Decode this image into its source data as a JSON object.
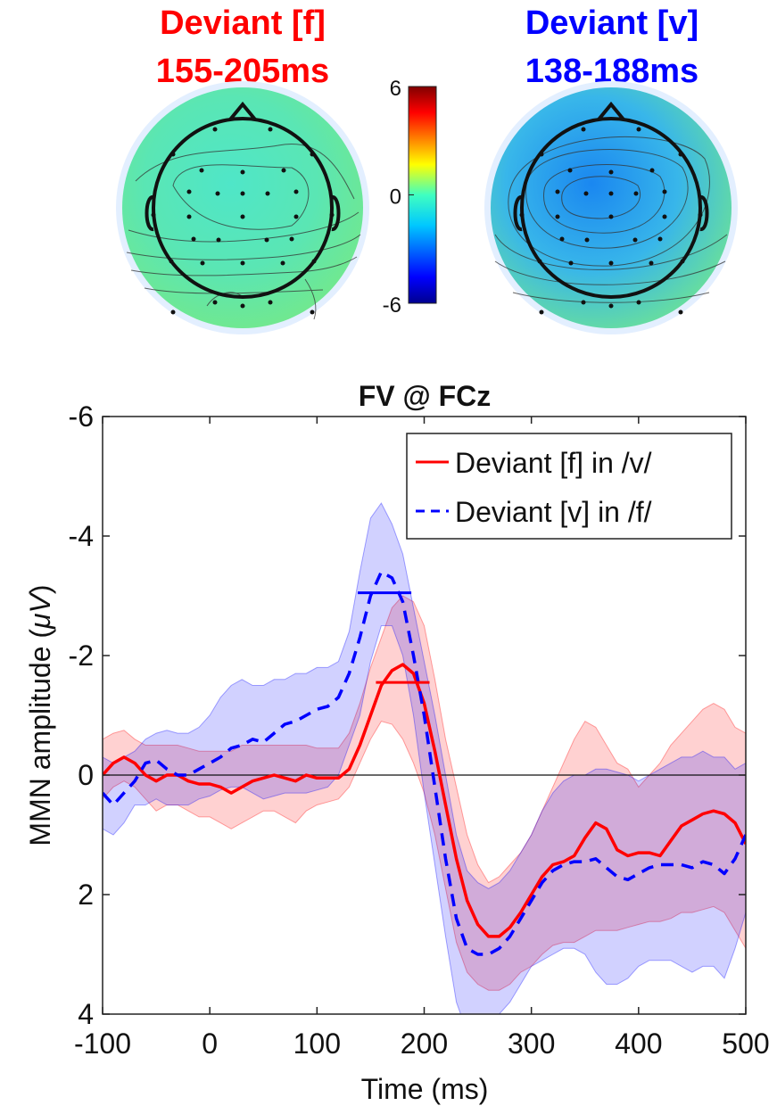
{
  "topomaps": [
    {
      "title": "Deviant [f]",
      "window": "155-205ms",
      "color": "#ff0000",
      "fill_inner": "#4fe6c8",
      "fill_mid": "#5ae6b4",
      "fill_outer": "#74e88a"
    },
    {
      "title": "Deviant [v]",
      "window": "138-188ms",
      "color": "#0000ff",
      "fill_inner": "#1a87f0",
      "fill_mid": "#38b6ea",
      "fill_outer": "#6ae09a"
    }
  ],
  "colorbar": {
    "ticks": [
      {
        "label": "6",
        "value": 6
      },
      {
        "label": "0",
        "value": 0
      },
      {
        "label": "-6",
        "value": -6
      }
    ],
    "min": -6,
    "max": 6
  },
  "chart_data": {
    "type": "line",
    "title": "FV @ FCz",
    "xlabel": "Time (ms)",
    "ylabel_prefix": "MMN amplitude (",
    "ylabel_unit": "μV",
    "ylabel_suffix": ")",
    "xlim": [
      -100,
      500
    ],
    "ylim": [
      -6,
      4
    ],
    "y_reversed": true,
    "xticks": [
      -100,
      0,
      100,
      200,
      300,
      400,
      500
    ],
    "xtick_labels": [
      "-100",
      "0",
      "100",
      "200",
      "300",
      "400",
      "500"
    ],
    "yticks": [
      -6,
      -4,
      -2,
      0,
      2,
      4
    ],
    "ytick_labels": [
      "-6",
      "-4",
      "-2",
      "0",
      "2",
      "4"
    ],
    "legend_position": "top-right",
    "series": [
      {
        "name": "Deviant [f] in /v/",
        "color": "#ff0000",
        "style": "solid",
        "x": [
          -100,
          -90,
          -80,
          -70,
          -60,
          -50,
          -40,
          -30,
          -20,
          -10,
          0,
          10,
          20,
          30,
          40,
          50,
          60,
          70,
          80,
          90,
          100,
          110,
          120,
          130,
          140,
          150,
          160,
          170,
          180,
          190,
          200,
          210,
          220,
          230,
          240,
          250,
          260,
          270,
          280,
          290,
          300,
          310,
          320,
          330,
          340,
          350,
          360,
          370,
          380,
          390,
          400,
          410,
          420,
          430,
          440,
          450,
          460,
          470,
          480,
          490,
          500
        ],
        "y": [
          0,
          -0.2,
          -0.3,
          -0.2,
          0,
          0.1,
          0,
          0,
          0.1,
          0.15,
          0.15,
          0.2,
          0.3,
          0.2,
          0.1,
          0.05,
          0,
          0.05,
          0.1,
          0,
          0.05,
          0.05,
          0.05,
          -0.1,
          -0.5,
          -1.0,
          -1.5,
          -1.75,
          -1.85,
          -1.7,
          -1.2,
          -0.4,
          0.5,
          1.4,
          2.1,
          2.5,
          2.7,
          2.7,
          2.55,
          2.3,
          2.0,
          1.7,
          1.5,
          1.45,
          1.35,
          1.05,
          0.8,
          0.9,
          1.25,
          1.35,
          1.3,
          1.3,
          1.35,
          1.1,
          0.85,
          0.75,
          0.65,
          0.6,
          0.65,
          0.8,
          1.15
        ],
        "band_lower": [
          0.4,
          0.2,
          0.1,
          0.2,
          0.4,
          0.6,
          0.5,
          0.5,
          0.6,
          0.7,
          0.7,
          0.8,
          0.9,
          0.8,
          0.7,
          0.6,
          0.6,
          0.7,
          0.8,
          0.6,
          0.5,
          0.45,
          0.4,
          0.2,
          -0.2,
          -0.6,
          -0.9,
          -0.85,
          -0.6,
          -0.2,
          0.3,
          1.0,
          1.9,
          2.8,
          3.3,
          3.5,
          3.6,
          3.6,
          3.5,
          3.3,
          3.2,
          3.0,
          2.85,
          2.8,
          2.8,
          2.7,
          2.6,
          2.6,
          2.6,
          2.55,
          2.5,
          2.45,
          2.45,
          2.4,
          2.3,
          2.3,
          2.25,
          2.2,
          2.3,
          2.6,
          2.9
        ],
        "band_upper": [
          -0.6,
          -0.7,
          -0.75,
          -0.6,
          -0.5,
          -0.5,
          -0.5,
          -0.5,
          -0.45,
          -0.4,
          -0.4,
          -0.4,
          -0.4,
          -0.5,
          -0.5,
          -0.5,
          -0.5,
          -0.5,
          -0.5,
          -0.5,
          -0.45,
          -0.45,
          -0.45,
          -0.7,
          -1.2,
          -1.8,
          -2.3,
          -2.8,
          -3.0,
          -2.9,
          -2.5,
          -1.6,
          -0.6,
          0.2,
          1.0,
          1.5,
          1.8,
          1.7,
          1.5,
          1.3,
          1.0,
          0.6,
          0.2,
          -0.2,
          -0.6,
          -0.9,
          -0.8,
          -0.5,
          -0.2,
          -0.1,
          0.2,
          0.0,
          -0.2,
          -0.5,
          -0.7,
          -0.9,
          -1.1,
          -1.2,
          -1.1,
          -0.8,
          -0.7
        ]
      },
      {
        "name": "Deviant [v] in /f/",
        "color": "#0000ff",
        "style": "dashed",
        "x": [
          -100,
          -90,
          -80,
          -70,
          -60,
          -50,
          -40,
          -30,
          -20,
          -10,
          0,
          10,
          20,
          30,
          40,
          50,
          60,
          70,
          80,
          90,
          100,
          110,
          120,
          130,
          140,
          150,
          160,
          170,
          180,
          190,
          200,
          210,
          220,
          230,
          240,
          250,
          260,
          270,
          280,
          290,
          300,
          310,
          320,
          330,
          340,
          350,
          360,
          370,
          380,
          390,
          400,
          410,
          420,
          430,
          440,
          450,
          460,
          470,
          480,
          490,
          500
        ],
        "y": [
          0.3,
          0.5,
          0.3,
          0.1,
          -0.2,
          -0.25,
          -0.1,
          0,
          0,
          -0.1,
          -0.2,
          -0.3,
          -0.45,
          -0.5,
          -0.6,
          -0.55,
          -0.7,
          -0.85,
          -0.9,
          -1.0,
          -1.1,
          -1.15,
          -1.3,
          -1.7,
          -2.3,
          -3.0,
          -3.4,
          -3.3,
          -2.9,
          -2.0,
          -1.0,
          0.2,
          1.4,
          2.4,
          2.9,
          3.0,
          3.0,
          2.9,
          2.7,
          2.4,
          2.1,
          1.8,
          1.6,
          1.5,
          1.45,
          1.45,
          1.4,
          1.55,
          1.7,
          1.75,
          1.65,
          1.55,
          1.5,
          1.5,
          1.5,
          1.55,
          1.45,
          1.5,
          1.65,
          1.4,
          1.0
        ],
        "band_lower": [
          0.9,
          1.0,
          0.8,
          0.5,
          0.5,
          0.4,
          0.5,
          0.5,
          0.5,
          0.4,
          0.35,
          0.25,
          0.2,
          0.2,
          0.3,
          0.4,
          0.35,
          0.3,
          0.3,
          0.3,
          0.25,
          0.2,
          0.0,
          -0.5,
          -1.0,
          -1.9,
          -2.5,
          -2.5,
          -2.0,
          -1.0,
          0.3,
          1.5,
          2.7,
          3.8,
          4.3,
          4.3,
          4.1,
          4.0,
          3.8,
          3.5,
          3.2,
          3.1,
          3.0,
          2.9,
          2.9,
          3.0,
          3.3,
          3.5,
          3.5,
          3.4,
          3.2,
          3.1,
          3.1,
          3.1,
          3.2,
          3.3,
          3.2,
          3.2,
          3.4,
          2.9,
          2.3
        ],
        "band_upper": [
          -0.3,
          -0.2,
          -0.3,
          -0.4,
          -0.6,
          -0.7,
          -0.75,
          -0.7,
          -0.7,
          -0.8,
          -1.0,
          -1.3,
          -1.5,
          -1.6,
          -1.5,
          -1.5,
          -1.6,
          -1.6,
          -1.7,
          -1.7,
          -1.8,
          -1.8,
          -1.9,
          -2.4,
          -3.4,
          -4.3,
          -4.55,
          -4.2,
          -3.7,
          -2.8,
          -1.9,
          -1.0,
          0.0,
          1.0,
          1.6,
          1.8,
          1.9,
          1.8,
          1.6,
          1.3,
          1.0,
          0.6,
          0.3,
          0.1,
          0.0,
          0.0,
          -0.1,
          -0.1,
          -0.05,
          0.0,
          0.1,
          0.0,
          -0.1,
          -0.2,
          -0.3,
          -0.3,
          -0.4,
          -0.3,
          -0.3,
          -0.1,
          -0.2
        ]
      }
    ],
    "window_markers": [
      {
        "x_start": 155,
        "x_end": 205,
        "y": -1.55,
        "color": "#ff0000"
      },
      {
        "x_start": 138,
        "x_end": 188,
        "y": -3.05,
        "color": "#0000ff"
      }
    ]
  }
}
